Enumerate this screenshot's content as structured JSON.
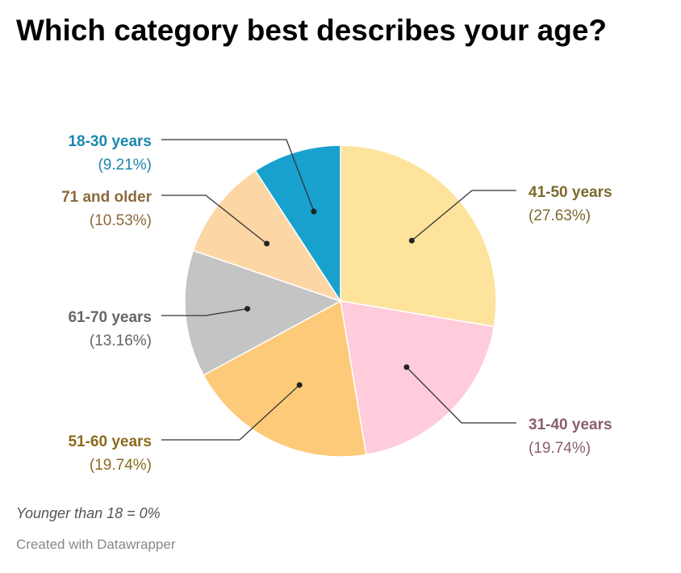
{
  "chart_data": {
    "type": "pie",
    "title": "Which category best describes your age?",
    "slices": [
      {
        "label": "41-50 years",
        "value": 27.63,
        "pct_label": "(27.63%)",
        "color": "#fde39c",
        "text_color": "#7c6a2d"
      },
      {
        "label": "31-40 years",
        "value": 19.74,
        "pct_label": "(19.74%)",
        "color": "#ffccdb",
        "text_color": "#8a5d70"
      },
      {
        "label": "51-60 years",
        "value": 19.74,
        "pct_label": "(19.74%)",
        "color": "#fdca79",
        "text_color": "#8c6a1f"
      },
      {
        "label": "61-70 years",
        "value": 13.16,
        "pct_label": "(13.16%)",
        "color": "#c4c4c4",
        "text_color": "#666666"
      },
      {
        "label": "71 and older",
        "value": 10.53,
        "pct_label": "(10.53%)",
        "color": "#fdd6a6",
        "text_color": "#8c6a3a"
      },
      {
        "label": "18-30 years",
        "value": 9.21,
        "pct_label": "(9.21%)",
        "color": "#18a1cd",
        "text_color": "#1b87ad"
      }
    ],
    "note": "Younger than 18 = 0%",
    "credit": "Created with Datawrapper"
  }
}
